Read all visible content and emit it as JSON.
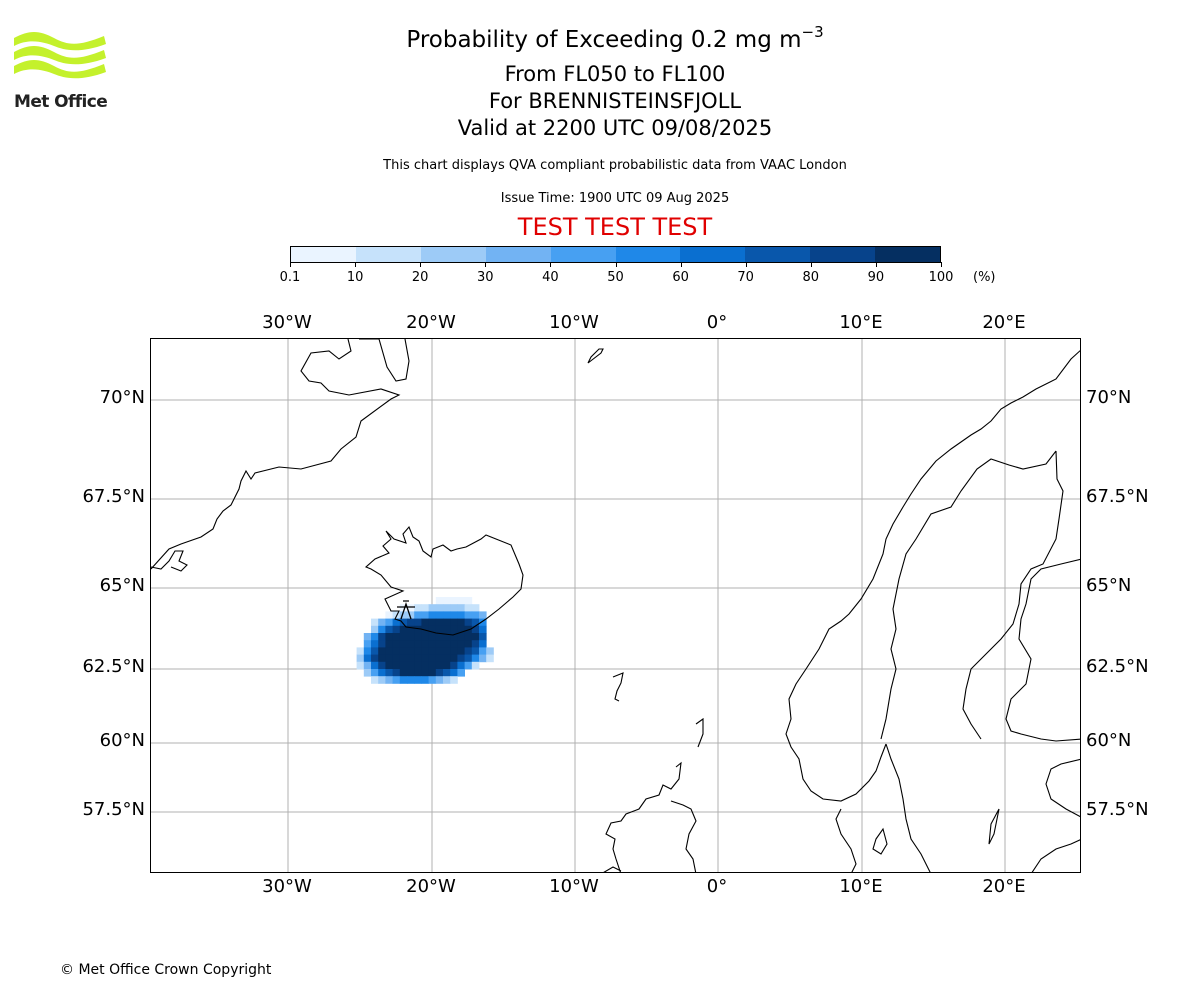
{
  "logo": {
    "text": "Met Office",
    "icon": "met-office-waves-icon",
    "color": "#c4f12c"
  },
  "title": {
    "main": "Probability of Exceeding 0.2 mg m",
    "superscript": "−3",
    "line2": "From FL050 to FL100",
    "line3": "For BRENNISTEINSFJOLL",
    "line4": "Valid at 2200 UTC 09/08/2025"
  },
  "description": "This chart displays QVA compliant probabilistic data from VAAC London",
  "issue_time": "Issue Time: 1900 UTC 09 Aug 2025",
  "test_banner": "TEST TEST TEST",
  "test_color": "#e00000",
  "colorbar": {
    "unit": "(%)",
    "ticks": [
      "0.1",
      "10",
      "20",
      "30",
      "40",
      "50",
      "60",
      "70",
      "80",
      "90",
      "100"
    ],
    "colors": [
      "#eaf4ff",
      "#c6e2fb",
      "#9dcbf7",
      "#72b3f3",
      "#47a0f2",
      "#1f88e8",
      "#0a6fd0",
      "#0957ab",
      "#07438b",
      "#052f61"
    ]
  },
  "map": {
    "lon_labels": [
      "30°W",
      "20°W",
      "10°W",
      "0°",
      "10°E",
      "20°E"
    ],
    "lat_labels": [
      "70°N",
      "67.5°N",
      "65°N",
      "62.5°N",
      "60°N",
      "57.5°N"
    ],
    "gridline_color": "#b0b0b0",
    "plume": {
      "source": "BRENNISTEINSFJOLL",
      "description": "probability plume south of Iceland",
      "peak_probability_pct": 90
    }
  },
  "copyright": "© Met Office Crown Copyright"
}
